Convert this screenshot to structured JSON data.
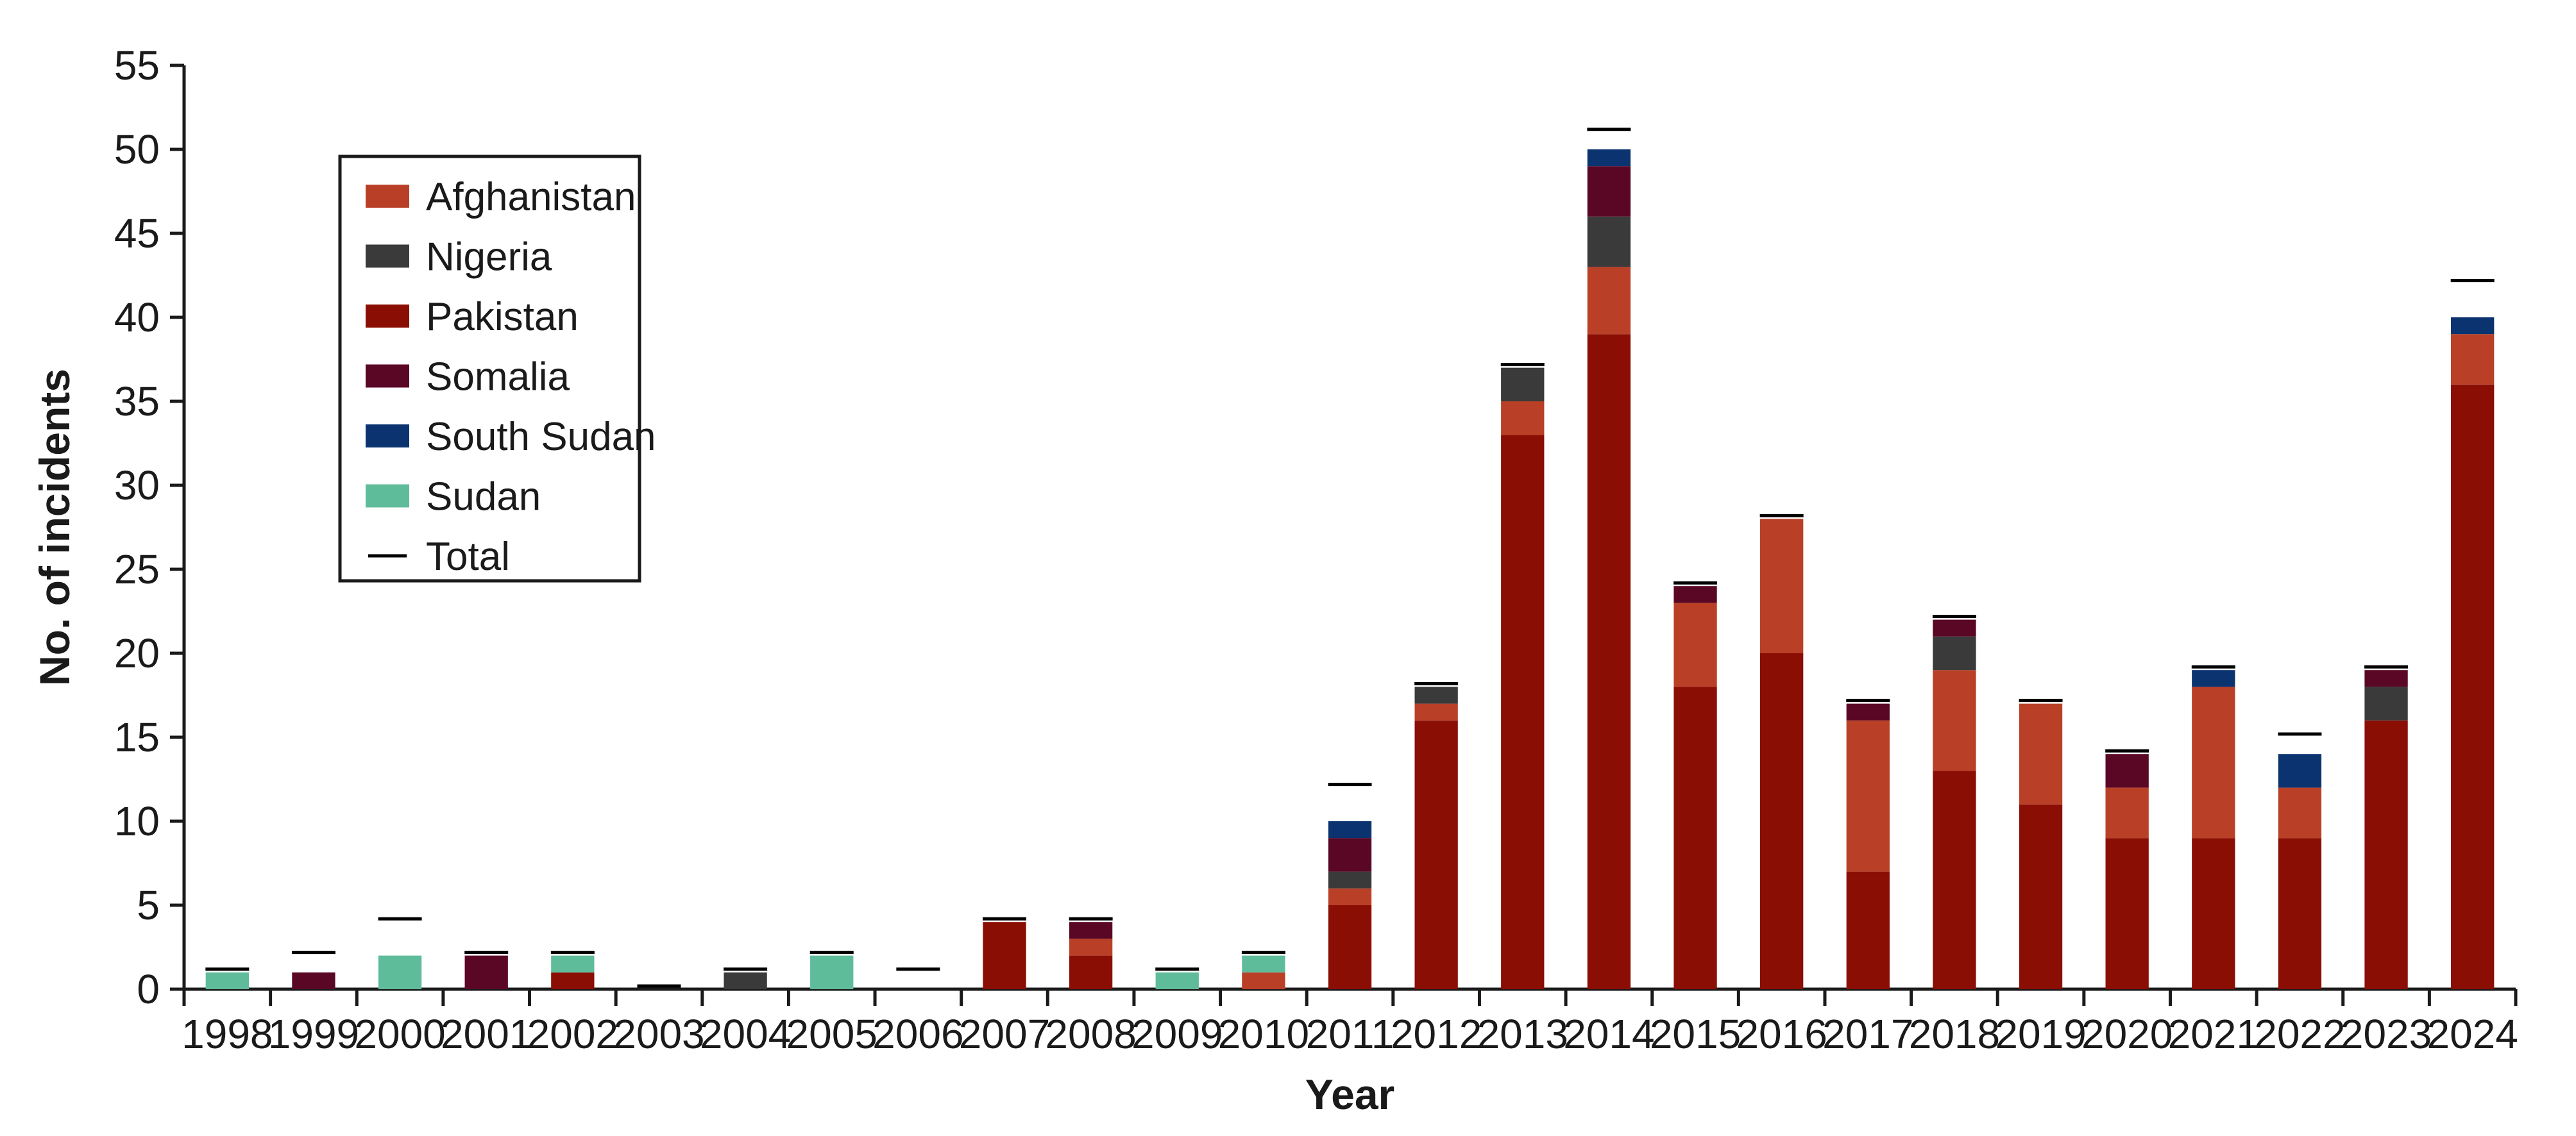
{
  "chart_data": {
    "type": "bar",
    "stacked": true,
    "title": "",
    "xlabel": "Year",
    "ylabel": "No. of incidents",
    "ylim": [
      0,
      55
    ],
    "y_ticks": [
      0,
      5,
      10,
      15,
      20,
      25,
      30,
      35,
      40,
      45,
      50,
      55
    ],
    "grid": false,
    "legend_position": "top-left",
    "categories": [
      "1998",
      "1999",
      "2000",
      "2001",
      "2002",
      "2003",
      "2004",
      "2005",
      "2006",
      "2007",
      "2008",
      "2009",
      "2010",
      "2011",
      "2012",
      "2013",
      "2014",
      "2015",
      "2016",
      "2017",
      "2018",
      "2019",
      "2020",
      "2021",
      "2022",
      "2023",
      "2024"
    ],
    "series": [
      {
        "name": "Pakistan",
        "color": "#8b0e04",
        "values": [
          0,
          0,
          0,
          0,
          1,
          0,
          0,
          0,
          0,
          4,
          2,
          0,
          0,
          5,
          16,
          33,
          39,
          18,
          20,
          7,
          13,
          11,
          9,
          9,
          9,
          16,
          36
        ]
      },
      {
        "name": "Afghanistan",
        "color": "#b94027",
        "values": [
          0,
          0,
          0,
          0,
          0,
          0,
          0,
          0,
          0,
          0,
          1,
          0,
          1,
          1,
          1,
          2,
          4,
          5,
          8,
          9,
          6,
          6,
          3,
          9,
          3,
          0,
          3
        ]
      },
      {
        "name": "Nigeria",
        "color": "#3a3a3a",
        "values": [
          0,
          0,
          0,
          0,
          0,
          0,
          1,
          0,
          0,
          0,
          0,
          0,
          0,
          1,
          1,
          2,
          3,
          0,
          0,
          0,
          2,
          0,
          0,
          0,
          0,
          2,
          0
        ]
      },
      {
        "name": "Somalia",
        "color": "#5a0726",
        "values": [
          0,
          1,
          0,
          2,
          0,
          0,
          0,
          0,
          0,
          0,
          1,
          0,
          0,
          2,
          0,
          0,
          3,
          1,
          0,
          1,
          1,
          0,
          2,
          0,
          0,
          1,
          0
        ]
      },
      {
        "name": "South Sudan",
        "color": "#0b3370",
        "values": [
          0,
          0,
          0,
          0,
          0,
          0,
          0,
          0,
          0,
          0,
          0,
          0,
          0,
          1,
          0,
          0,
          1,
          0,
          0,
          0,
          0,
          0,
          0,
          1,
          2,
          0,
          1
        ]
      },
      {
        "name": "Sudan",
        "color": "#5fbc9a",
        "values": [
          1,
          0,
          2,
          0,
          1,
          0,
          0,
          2,
          0,
          0,
          0,
          1,
          1,
          0,
          0,
          0,
          0,
          0,
          0,
          0,
          0,
          0,
          0,
          0,
          0,
          0,
          0
        ]
      }
    ],
    "total": {
      "name": "Total",
      "values": [
        1,
        2,
        4,
        2,
        2,
        0,
        1,
        2,
        1,
        4,
        4,
        1,
        2,
        12,
        18,
        37,
        51,
        24,
        28,
        17,
        22,
        17,
        14,
        19,
        15,
        19,
        42
      ]
    },
    "legend_order": [
      "Afghanistan",
      "Nigeria",
      "Pakistan",
      "Somalia",
      "South Sudan",
      "Sudan",
      "Total"
    ]
  }
}
